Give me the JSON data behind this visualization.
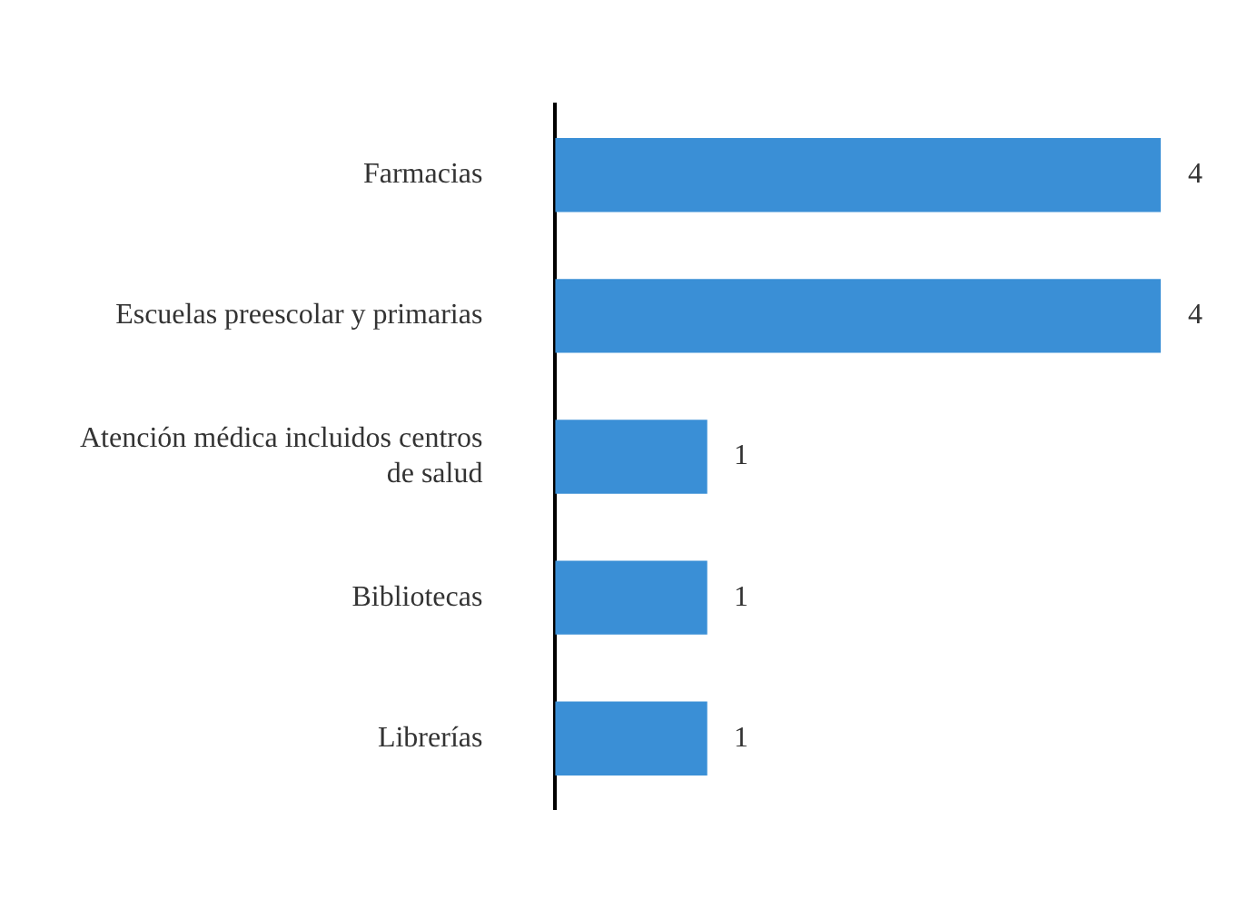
{
  "chart_data": {
    "type": "bar",
    "orientation": "horizontal",
    "categories": [
      "Farmacias",
      "Escuelas preescolar y primarias",
      "Atención médica incluidos centros de salud",
      "Bibliotecas",
      "Librerías"
    ],
    "values": [
      4,
      4,
      1,
      1,
      1
    ],
    "color": "#3a8fd6",
    "data_labels": true,
    "legend": false,
    "tick_labels": "y"
  }
}
